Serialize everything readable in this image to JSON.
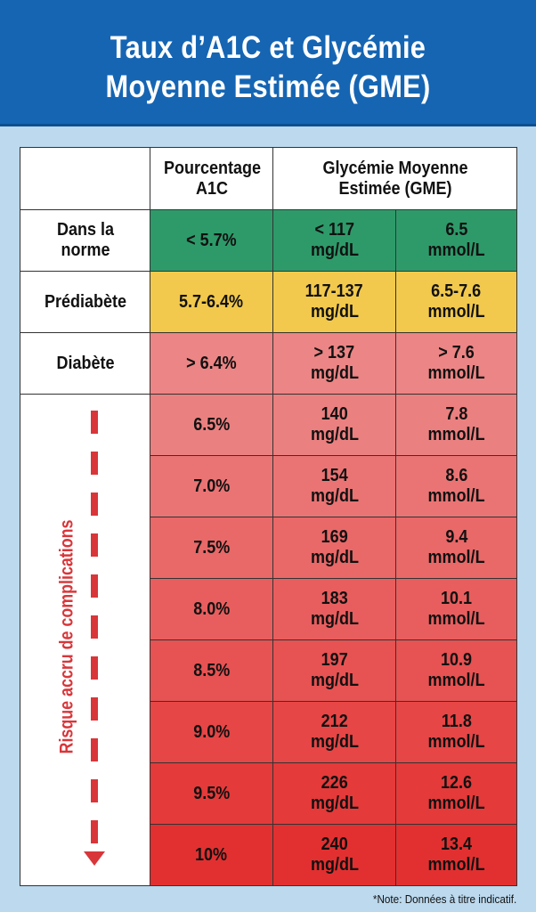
{
  "title_lines": [
    "Taux d’A1C et Glycémie",
    "Moyenne Estimée (GME)"
  ],
  "columns": {
    "a1c": "Pourcentage A1C",
    "gme": "Glycémie Moyenne Estimée (GME)"
  },
  "categories": [
    {
      "label": "Dans la norme",
      "a1c": "< 5.7%",
      "mgdl": [
        "< 117",
        "mg/dL"
      ],
      "mmol": [
        "6.5",
        "mmol/L"
      ],
      "color": "#2e9a6a"
    },
    {
      "label": "Prédiabète",
      "a1c": "5.7-6.4%",
      "mgdl": [
        "117-137",
        "mg/dL"
      ],
      "mmol": [
        "6.5-7.6",
        "mmol/L"
      ],
      "color": "#f2c94c"
    },
    {
      "label": "Diabète",
      "a1c": "> 6.4%",
      "mgdl": [
        "> 137",
        "mg/dL"
      ],
      "mmol": [
        "> 7.6",
        "mmol/L"
      ],
      "color": "#ec8585"
    }
  ],
  "risk_label": "Risque accru de complications",
  "rows": [
    {
      "a1c": "6.5%",
      "mgdl": "140",
      "mmol": "7.8",
      "color": "#eb8080"
    },
    {
      "a1c": "7.0%",
      "mgdl": "154",
      "mmol": "8.6",
      "color": "#ea7474"
    },
    {
      "a1c": "7.5%",
      "mgdl": "169",
      "mmol": "9.4",
      "color": "#e96868"
    },
    {
      "a1c": "8.0%",
      "mgdl": "183",
      "mmol": "10.1",
      "color": "#e85e5e"
    },
    {
      "a1c": "8.5%",
      "mgdl": "197",
      "mmol": "10.9",
      "color": "#e75252"
    },
    {
      "a1c": "9.0%",
      "mgdl": "212",
      "mmol": "11.8",
      "color": "#e64646"
    },
    {
      "a1c": "9.5%",
      "mgdl": "226",
      "mmol": "12.6",
      "color": "#e43a3a"
    },
    {
      "a1c": "10%",
      "mgdl": "240",
      "mmol": "13.4",
      "color": "#e23030"
    }
  ],
  "units": {
    "mgdl": "mg/dL",
    "mmol": "mmol/L"
  },
  "note": "*Note: Données à titre indicatif."
}
